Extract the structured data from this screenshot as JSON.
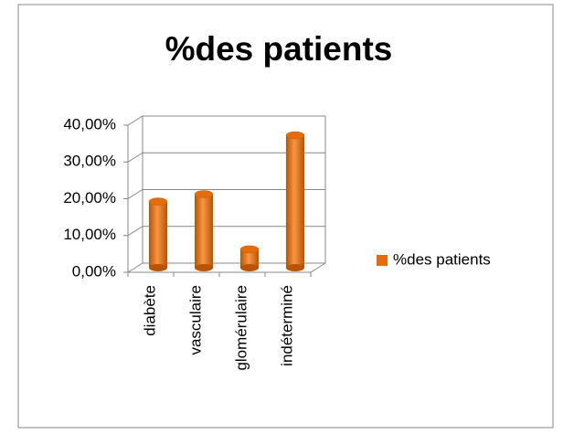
{
  "chart_data": {
    "type": "bar3d",
    "title": "%des patients",
    "categories": [
      "diabète",
      "vasculaire",
      "glomérulaire",
      "indéterminé"
    ],
    "series": [
      {
        "name": "%des patients",
        "color": "#e46c0a",
        "values": [
          18,
          20,
          5,
          36
        ]
      }
    ],
    "ylim": [
      0,
      40
    ],
    "yticks": [
      {
        "value": 0,
        "label": "0,00%"
      },
      {
        "value": 10,
        "label": "10,00%"
      },
      {
        "value": 20,
        "label": "20,00%"
      },
      {
        "value": 30,
        "label": "30,00%"
      },
      {
        "value": 40,
        "label": "40,00%"
      }
    ],
    "grid": true,
    "legend": "right"
  }
}
